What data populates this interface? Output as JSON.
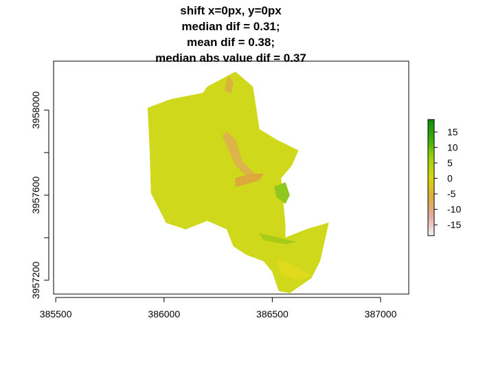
{
  "chart_data": {
    "type": "heatmap",
    "title_lines": [
      "shift x=0px, y=0px",
      "median dif = 0.31;",
      "mean dif = 0.38;",
      "median abs value dif = 0.37"
    ],
    "xlabel": "",
    "ylabel": "",
    "x_ticks": [
      385500,
      386000,
      386500,
      387000
    ],
    "y_ticks": [
      3957200,
      3957600,
      3958000
    ],
    "xlim": [
      385490,
      387130
    ],
    "ylim": [
      3957135,
      3958230
    ],
    "colorbar": {
      "ticks": [
        15,
        10,
        5,
        0,
        -5,
        -10,
        -15
      ],
      "range": [
        -18.5,
        19
      ],
      "colors": [
        "#f2f2f2",
        "#e4aaa0",
        "#dcae3c",
        "#d4d60c",
        "#9dd20f",
        "#3faa0c",
        "#0c8f0c"
      ]
    },
    "regions": [
      {
        "name": "main-body",
        "color": "#cfd81a",
        "value": 0.3,
        "polygon": [
          [
            385925,
            3958010
          ],
          [
            386030,
            3958050
          ],
          [
            386180,
            3958080
          ],
          [
            386200,
            3958110
          ],
          [
            386330,
            3958180
          ],
          [
            386410,
            3958110
          ],
          [
            386440,
            3957910
          ],
          [
            386520,
            3957860
          ],
          [
            386620,
            3957810
          ],
          [
            386590,
            3957740
          ],
          [
            386540,
            3957680
          ],
          [
            386560,
            3957460
          ],
          [
            386560,
            3957400
          ],
          [
            386660,
            3957440
          ],
          [
            386760,
            3957470
          ],
          [
            386720,
            3957290
          ],
          [
            386680,
            3957210
          ],
          [
            386580,
            3957140
          ],
          [
            386530,
            3957150
          ],
          [
            386500,
            3957240
          ],
          [
            386460,
            3957290
          ],
          [
            386380,
            3957320
          ],
          [
            386320,
            3957360
          ],
          [
            386290,
            3957440
          ],
          [
            386200,
            3957480
          ],
          [
            386100,
            3957440
          ],
          [
            386010,
            3957470
          ],
          [
            385940,
            3957610
          ],
          [
            385935,
            3957800
          ]
        ]
      },
      {
        "name": "channel-west",
        "color": "#ddb44a",
        "value": -4,
        "polygon": [
          [
            386290,
            3957900
          ],
          [
            386330,
            3957860
          ],
          [
            386360,
            3957760
          ],
          [
            386420,
            3957700
          ],
          [
            386390,
            3957680
          ],
          [
            386330,
            3957740
          ],
          [
            386300,
            3957810
          ],
          [
            386270,
            3957880
          ]
        ]
      },
      {
        "name": "channel-center",
        "color": "#dda83c",
        "value": -6,
        "polygon": [
          [
            386330,
            3957680
          ],
          [
            386400,
            3957700
          ],
          [
            386460,
            3957700
          ],
          [
            386440,
            3957670
          ],
          [
            386370,
            3957650
          ],
          [
            386330,
            3957640
          ]
        ]
      },
      {
        "name": "channel-north",
        "color": "#d8b43e",
        "value": -3,
        "polygon": [
          [
            386300,
            3958160
          ],
          [
            386320,
            3958130
          ],
          [
            386310,
            3958080
          ],
          [
            386280,
            3958090
          ],
          [
            386290,
            3958140
          ]
        ]
      },
      {
        "name": "green-east",
        "color": "#8fc81e",
        "value": 6,
        "polygon": [
          [
            386510,
            3957640
          ],
          [
            386560,
            3957660
          ],
          [
            386580,
            3957600
          ],
          [
            386560,
            3957560
          ],
          [
            386520,
            3957590
          ]
        ]
      },
      {
        "name": "green-lower",
        "color": "#a6cc18",
        "value": 4,
        "polygon": [
          [
            386440,
            3957420
          ],
          [
            386530,
            3957400
          ],
          [
            386610,
            3957380
          ],
          [
            386560,
            3957370
          ],
          [
            386460,
            3957390
          ]
        ]
      },
      {
        "name": "light-patch",
        "color": "#dfda1c",
        "value": 0,
        "polygon": [
          [
            386520,
            3957300
          ],
          [
            386600,
            3957270
          ],
          [
            386680,
            3957220
          ],
          [
            386620,
            3957200
          ],
          [
            386540,
            3957230
          ]
        ]
      }
    ]
  }
}
